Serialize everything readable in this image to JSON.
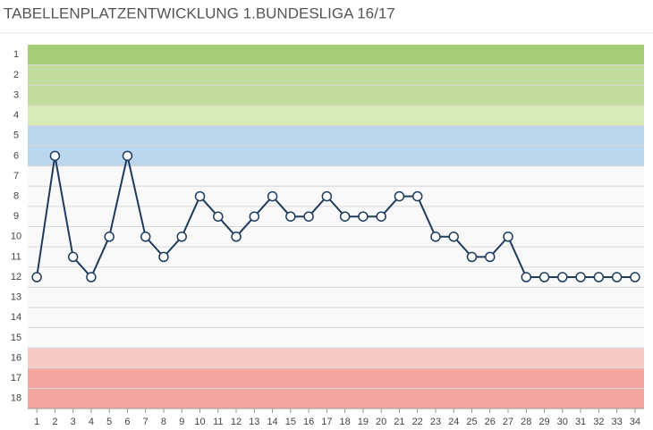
{
  "chart_data": {
    "type": "line",
    "title": "TABELLENPLATZENTWICKLUNG 1.BUNDESLIGA 16/17",
    "x": [
      1,
      2,
      3,
      4,
      5,
      6,
      7,
      8,
      9,
      10,
      11,
      12,
      13,
      14,
      15,
      16,
      17,
      18,
      19,
      20,
      21,
      22,
      23,
      24,
      25,
      26,
      27,
      28,
      29,
      30,
      31,
      32,
      33,
      34
    ],
    "series": [
      {
        "color": "#1d3c5e",
        "values": [
          12,
          6,
          11,
          12,
          10,
          6,
          10,
          11,
          10,
          8,
          9,
          10,
          9,
          8,
          9,
          9,
          8,
          9,
          9,
          9,
          8,
          8,
          10,
          10,
          11,
          11,
          10,
          12,
          12,
          12,
          12,
          12,
          12,
          12
        ]
      }
    ],
    "xlim": [
      0.5,
      34.5
    ],
    "xticks": [
      1,
      2,
      3,
      4,
      5,
      6,
      7,
      8,
      9,
      10,
      11,
      12,
      13,
      14,
      15,
      16,
      17,
      18,
      19,
      20,
      21,
      22,
      23,
      24,
      25,
      26,
      27,
      28,
      29,
      30,
      31,
      32,
      33,
      34
    ],
    "ylim": [
      18.5,
      0.5
    ],
    "yticks": [
      1,
      2,
      3,
      4,
      5,
      6,
      7,
      8,
      9,
      10,
      11,
      12,
      13,
      14,
      15,
      16,
      17,
      18
    ],
    "grid": true,
    "bands": [
      {
        "from": 1,
        "to": 1,
        "color": "#a8cd78"
      },
      {
        "from": 2,
        "to": 3,
        "color": "#c2dc9b"
      },
      {
        "from": 4,
        "to": 4,
        "color": "#d7eab8"
      },
      {
        "from": 5,
        "to": 6,
        "color": "#bcd6ee"
      },
      {
        "from": 7,
        "to": 15,
        "color": "#f9f9f9"
      },
      {
        "from": 16,
        "to": 16,
        "color": "#f6cac6"
      },
      {
        "from": 17,
        "to": 18,
        "color": "#f3a6a0"
      }
    ]
  }
}
